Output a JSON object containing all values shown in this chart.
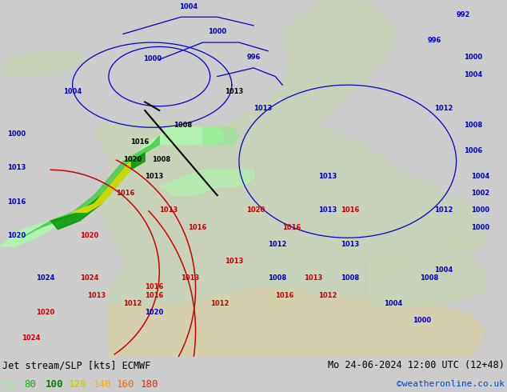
{
  "title_left": "Jet stream/SLP [kts] ECMWF",
  "title_right": "Mo 24-06-2024 12:00 UTC (12+48)",
  "credit": "©weatheronline.co.uk",
  "legend_values": [
    "60",
    "80",
    "100",
    "120",
    "140",
    "160",
    "180"
  ],
  "legend_colors": [
    "#90ee90",
    "#00bb00",
    "#008800",
    "#cccc00",
    "#ffaa00",
    "#ff6600",
    "#ff2200"
  ],
  "fig_bg": "#cccccc",
  "bottom_bar_color": "#e8e8e8",
  "sea_color": "#c8dce8",
  "land_color": "#c8d4b8",
  "africa_color": "#d8d0a8",
  "isobar_blue": "#0000cc",
  "isobar_red": "#cc0000",
  "isobar_black": "#000000",
  "figsize": [
    6.34,
    4.9
  ],
  "dpi": 100
}
